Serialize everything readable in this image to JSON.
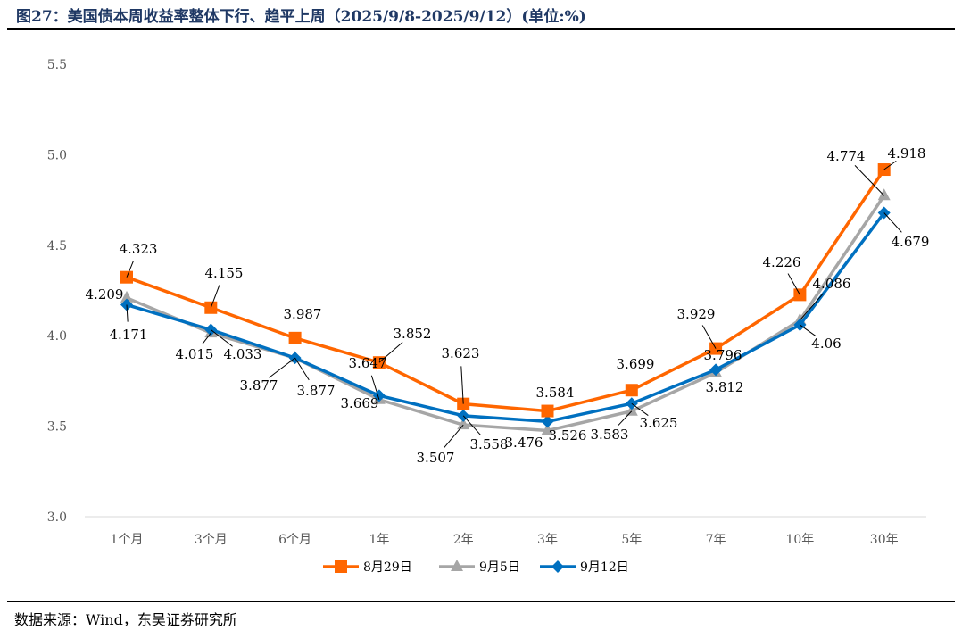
{
  "title": "图27：美国债本周收益率整体下行、趋平上周（2025/9/8-2025/9/12）(单位:%)",
  "source": "数据来源：Wind，东吴证券研究所",
  "chart_data": {
    "type": "line",
    "categories": [
      "1个月",
      "3个月",
      "6个月",
      "1年",
      "2年",
      "3年",
      "5年",
      "7年",
      "10年",
      "30年"
    ],
    "ylim": [
      3.0,
      5.5
    ],
    "yticks": [
      "3.0",
      "3.5",
      "4.0",
      "4.5",
      "5.0",
      "5.5"
    ],
    "grid": false,
    "legend": "bottom",
    "series": [
      {
        "name": "8月29日",
        "color": "#ff6600",
        "marker": "square",
        "values": [
          4.323,
          4.155,
          3.987,
          3.852,
          3.623,
          3.584,
          3.699,
          3.929,
          4.226,
          4.918
        ]
      },
      {
        "name": "9月5日",
        "color": "#a6a6a6",
        "marker": "triangle",
        "values": [
          4.209,
          4.015,
          3.877,
          3.647,
          3.507,
          3.476,
          3.583,
          3.796,
          4.086,
          4.774
        ]
      },
      {
        "name": "9月12日",
        "color": "#0070c0",
        "marker": "diamond",
        "values": [
          4.171,
          4.033,
          3.877,
          3.669,
          3.558,
          3.526,
          3.625,
          3.812,
          4.06,
          4.679
        ]
      }
    ]
  }
}
